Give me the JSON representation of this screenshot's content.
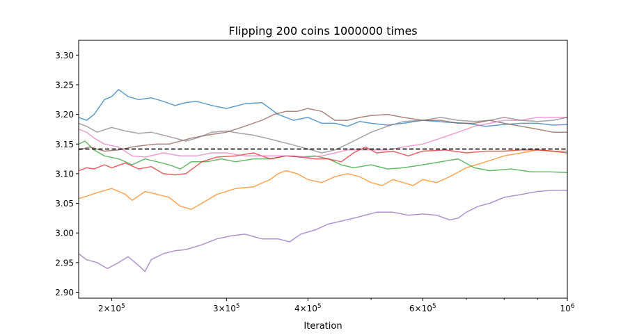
{
  "chart_data": {
    "type": "line",
    "title": "Flipping 200 coins 1000000 times",
    "xlabel": "Iteration",
    "ylabel": "",
    "x_scale": "log",
    "xlim": [
      178000,
      1000000
    ],
    "ylim": [
      2.89,
      3.325
    ],
    "x_ticks": [
      {
        "value": 200000,
        "mantissa": "2×10",
        "exp": "5"
      },
      {
        "value": 300000,
        "mantissa": "3×10",
        "exp": "5"
      },
      {
        "value": 400000,
        "mantissa": "4×10",
        "exp": "5"
      },
      {
        "value": 600000,
        "mantissa": "6×10",
        "exp": "5"
      },
      {
        "value": 1000000,
        "mantissa": "10",
        "exp": "6"
      }
    ],
    "x_minor_ticks": [
      500000,
      700000,
      800000,
      900000
    ],
    "y_ticks": [
      "2.90",
      "2.95",
      "3.00",
      "3.05",
      "3.10",
      "3.15",
      "3.20",
      "3.25",
      "3.30"
    ],
    "reference_line": {
      "y": 3.1416,
      "style": "dashed",
      "color": "#000000"
    },
    "series": [
      {
        "color": "#1f77b4",
        "points": [
          [
            178000,
            3.195
          ],
          [
            183000,
            3.19
          ],
          [
            188000,
            3.2
          ],
          [
            195000,
            3.225
          ],
          [
            200000,
            3.23
          ],
          [
            205000,
            3.242
          ],
          [
            212000,
            3.23
          ],
          [
            220000,
            3.225
          ],
          [
            230000,
            3.228
          ],
          [
            240000,
            3.222
          ],
          [
            250000,
            3.215
          ],
          [
            260000,
            3.22
          ],
          [
            270000,
            3.222
          ],
          [
            285000,
            3.215
          ],
          [
            300000,
            3.21
          ],
          [
            320000,
            3.218
          ],
          [
            340000,
            3.22
          ],
          [
            360000,
            3.2
          ],
          [
            380000,
            3.19
          ],
          [
            400000,
            3.195
          ],
          [
            420000,
            3.185
          ],
          [
            440000,
            3.185
          ],
          [
            460000,
            3.18
          ],
          [
            480000,
            3.188
          ],
          [
            500000,
            3.185
          ],
          [
            530000,
            3.182
          ],
          [
            560000,
            3.185
          ],
          [
            600000,
            3.19
          ],
          [
            650000,
            3.187
          ],
          [
            700000,
            3.185
          ],
          [
            750000,
            3.18
          ],
          [
            800000,
            3.183
          ],
          [
            850000,
            3.185
          ],
          [
            900000,
            3.185
          ],
          [
            950000,
            3.182
          ],
          [
            1000000,
            3.183
          ]
        ]
      },
      {
        "color": "#ff7f0e",
        "points": [
          [
            178000,
            3.058
          ],
          [
            183000,
            3.062
          ],
          [
            190000,
            3.068
          ],
          [
            200000,
            3.075
          ],
          [
            210000,
            3.065
          ],
          [
            215000,
            3.055
          ],
          [
            225000,
            3.07
          ],
          [
            235000,
            3.065
          ],
          [
            245000,
            3.06
          ],
          [
            255000,
            3.045
          ],
          [
            265000,
            3.04
          ],
          [
            275000,
            3.05
          ],
          [
            290000,
            3.065
          ],
          [
            310000,
            3.075
          ],
          [
            330000,
            3.078
          ],
          [
            350000,
            3.09
          ],
          [
            360000,
            3.1
          ],
          [
            370000,
            3.105
          ],
          [
            385000,
            3.1
          ],
          [
            400000,
            3.09
          ],
          [
            420000,
            3.085
          ],
          [
            440000,
            3.095
          ],
          [
            460000,
            3.1
          ],
          [
            480000,
            3.095
          ],
          [
            500000,
            3.085
          ],
          [
            520000,
            3.08
          ],
          [
            540000,
            3.09
          ],
          [
            560000,
            3.085
          ],
          [
            580000,
            3.08
          ],
          [
            600000,
            3.09
          ],
          [
            630000,
            3.085
          ],
          [
            660000,
            3.095
          ],
          [
            700000,
            3.11
          ],
          [
            750000,
            3.12
          ],
          [
            800000,
            3.13
          ],
          [
            850000,
            3.135
          ],
          [
            900000,
            3.14
          ],
          [
            950000,
            3.138
          ],
          [
            1000000,
            3.138
          ]
        ]
      },
      {
        "color": "#2ca02c",
        "points": [
          [
            178000,
            3.15
          ],
          [
            182000,
            3.155
          ],
          [
            188000,
            3.14
          ],
          [
            195000,
            3.13
          ],
          [
            205000,
            3.125
          ],
          [
            215000,
            3.115
          ],
          [
            225000,
            3.125
          ],
          [
            235000,
            3.12
          ],
          [
            245000,
            3.115
          ],
          [
            255000,
            3.108
          ],
          [
            265000,
            3.12
          ],
          [
            280000,
            3.12
          ],
          [
            295000,
            3.125
          ],
          [
            310000,
            3.12
          ],
          [
            330000,
            3.125
          ],
          [
            350000,
            3.125
          ],
          [
            370000,
            3.13
          ],
          [
            390000,
            3.128
          ],
          [
            410000,
            3.13
          ],
          [
            430000,
            3.125
          ],
          [
            450000,
            3.115
          ],
          [
            470000,
            3.11
          ],
          [
            500000,
            3.115
          ],
          [
            530000,
            3.108
          ],
          [
            560000,
            3.11
          ],
          [
            600000,
            3.115
          ],
          [
            640000,
            3.12
          ],
          [
            680000,
            3.125
          ],
          [
            720000,
            3.11
          ],
          [
            760000,
            3.105
          ],
          [
            820000,
            3.108
          ],
          [
            880000,
            3.103
          ],
          [
            940000,
            3.103
          ],
          [
            1000000,
            3.102
          ]
        ]
      },
      {
        "color": "#d62728",
        "points": [
          [
            178000,
            3.105
          ],
          [
            183000,
            3.11
          ],
          [
            188000,
            3.108
          ],
          [
            195000,
            3.115
          ],
          [
            200000,
            3.11
          ],
          [
            210000,
            3.118
          ],
          [
            220000,
            3.108
          ],
          [
            230000,
            3.112
          ],
          [
            240000,
            3.1
          ],
          [
            250000,
            3.098
          ],
          [
            260000,
            3.1
          ],
          [
            275000,
            3.12
          ],
          [
            290000,
            3.128
          ],
          [
            310000,
            3.13
          ],
          [
            330000,
            3.135
          ],
          [
            350000,
            3.125
          ],
          [
            370000,
            3.13
          ],
          [
            390000,
            3.128
          ],
          [
            410000,
            3.125
          ],
          [
            430000,
            3.125
          ],
          [
            450000,
            3.12
          ],
          [
            470000,
            3.135
          ],
          [
            490000,
            3.145
          ],
          [
            510000,
            3.135
          ],
          [
            540000,
            3.138
          ],
          [
            570000,
            3.13
          ],
          [
            600000,
            3.138
          ],
          [
            650000,
            3.14
          ],
          [
            700000,
            3.135
          ],
          [
            750000,
            3.138
          ],
          [
            800000,
            3.138
          ],
          [
            850000,
            3.14
          ],
          [
            900000,
            3.14
          ],
          [
            950000,
            3.138
          ],
          [
            1000000,
            3.135
          ]
        ]
      },
      {
        "color": "#9467bd",
        "points": [
          [
            178000,
            2.965
          ],
          [
            183000,
            2.955
          ],
          [
            190000,
            2.95
          ],
          [
            197000,
            2.94
          ],
          [
            205000,
            2.95
          ],
          [
            212000,
            2.96
          ],
          [
            220000,
            2.945
          ],
          [
            225000,
            2.935
          ],
          [
            230000,
            2.955
          ],
          [
            240000,
            2.965
          ],
          [
            250000,
            2.97
          ],
          [
            260000,
            2.972
          ],
          [
            275000,
            2.98
          ],
          [
            290000,
            2.99
          ],
          [
            305000,
            2.995
          ],
          [
            320000,
            2.998
          ],
          [
            340000,
            2.99
          ],
          [
            360000,
            2.99
          ],
          [
            375000,
            2.985
          ],
          [
            390000,
            2.998
          ],
          [
            410000,
            3.005
          ],
          [
            430000,
            3.015
          ],
          [
            450000,
            3.02
          ],
          [
            470000,
            3.025
          ],
          [
            490000,
            3.03
          ],
          [
            510000,
            3.035
          ],
          [
            540000,
            3.035
          ],
          [
            570000,
            3.03
          ],
          [
            600000,
            3.032
          ],
          [
            630000,
            3.03
          ],
          [
            660000,
            3.022
          ],
          [
            680000,
            3.025
          ],
          [
            700000,
            3.035
          ],
          [
            730000,
            3.045
          ],
          [
            760000,
            3.05
          ],
          [
            800000,
            3.06
          ],
          [
            850000,
            3.065
          ],
          [
            900000,
            3.07
          ],
          [
            950000,
            3.072
          ],
          [
            1000000,
            3.072
          ]
        ]
      },
      {
        "color": "#8c564b",
        "points": [
          [
            178000,
            3.14
          ],
          [
            185000,
            3.145
          ],
          [
            195000,
            3.138
          ],
          [
            205000,
            3.14
          ],
          [
            215000,
            3.145
          ],
          [
            225000,
            3.148
          ],
          [
            235000,
            3.15
          ],
          [
            245000,
            3.15
          ],
          [
            255000,
            3.155
          ],
          [
            265000,
            3.16
          ],
          [
            280000,
            3.165
          ],
          [
            300000,
            3.17
          ],
          [
            320000,
            3.18
          ],
          [
            340000,
            3.19
          ],
          [
            355000,
            3.2
          ],
          [
            370000,
            3.205
          ],
          [
            385000,
            3.205
          ],
          [
            400000,
            3.21
          ],
          [
            420000,
            3.205
          ],
          [
            440000,
            3.19
          ],
          [
            460000,
            3.19
          ],
          [
            480000,
            3.195
          ],
          [
            500000,
            3.198
          ],
          [
            530000,
            3.2
          ],
          [
            560000,
            3.195
          ],
          [
            600000,
            3.19
          ],
          [
            640000,
            3.19
          ],
          [
            680000,
            3.185
          ],
          [
            720000,
            3.185
          ],
          [
            760000,
            3.19
          ],
          [
            800000,
            3.185
          ],
          [
            850000,
            3.18
          ],
          [
            900000,
            3.175
          ],
          [
            950000,
            3.17
          ],
          [
            1000000,
            3.17
          ]
        ]
      },
      {
        "color": "#e377c2",
        "points": [
          [
            178000,
            3.175
          ],
          [
            183000,
            3.17
          ],
          [
            188000,
            3.16
          ],
          [
            195000,
            3.15
          ],
          [
            205000,
            3.145
          ],
          [
            215000,
            3.13
          ],
          [
            225000,
            3.128
          ],
          [
            240000,
            3.135
          ],
          [
            255000,
            3.13
          ],
          [
            270000,
            3.13
          ],
          [
            285000,
            3.135
          ],
          [
            300000,
            3.135
          ],
          [
            320000,
            3.13
          ],
          [
            340000,
            3.13
          ],
          [
            360000,
            3.13
          ],
          [
            380000,
            3.13
          ],
          [
            400000,
            3.128
          ],
          [
            420000,
            3.13
          ],
          [
            440000,
            3.135
          ],
          [
            460000,
            3.14
          ],
          [
            480000,
            3.14
          ],
          [
            500000,
            3.14
          ],
          [
            530000,
            3.14
          ],
          [
            560000,
            3.145
          ],
          [
            600000,
            3.15
          ],
          [
            640000,
            3.16
          ],
          [
            680000,
            3.17
          ],
          [
            720000,
            3.18
          ],
          [
            760000,
            3.185
          ],
          [
            800000,
            3.19
          ],
          [
            850000,
            3.19
          ],
          [
            900000,
            3.195
          ],
          [
            950000,
            3.195
          ],
          [
            1000000,
            3.195
          ]
        ]
      },
      {
        "color": "#7f7f7f",
        "points": [
          [
            178000,
            3.185
          ],
          [
            183000,
            3.18
          ],
          [
            190000,
            3.17
          ],
          [
            200000,
            3.178
          ],
          [
            210000,
            3.172
          ],
          [
            220000,
            3.168
          ],
          [
            230000,
            3.17
          ],
          [
            240000,
            3.165
          ],
          [
            250000,
            3.16
          ],
          [
            260000,
            3.155
          ],
          [
            270000,
            3.16
          ],
          [
            285000,
            3.17
          ],
          [
            300000,
            3.172
          ],
          [
            315000,
            3.168
          ],
          [
            330000,
            3.165
          ],
          [
            345000,
            3.16
          ],
          [
            360000,
            3.155
          ],
          [
            375000,
            3.15
          ],
          [
            390000,
            3.145
          ],
          [
            405000,
            3.14
          ],
          [
            420000,
            3.135
          ],
          [
            440000,
            3.14
          ],
          [
            460000,
            3.15
          ],
          [
            480000,
            3.16
          ],
          [
            500000,
            3.17
          ],
          [
            530000,
            3.18
          ],
          [
            560000,
            3.188
          ],
          [
            600000,
            3.19
          ],
          [
            640000,
            3.195
          ],
          [
            680000,
            3.19
          ],
          [
            720000,
            3.188
          ],
          [
            760000,
            3.19
          ],
          [
            800000,
            3.195
          ],
          [
            850000,
            3.19
          ],
          [
            900000,
            3.188
          ],
          [
            950000,
            3.19
          ],
          [
            1000000,
            3.195
          ]
        ]
      }
    ]
  }
}
